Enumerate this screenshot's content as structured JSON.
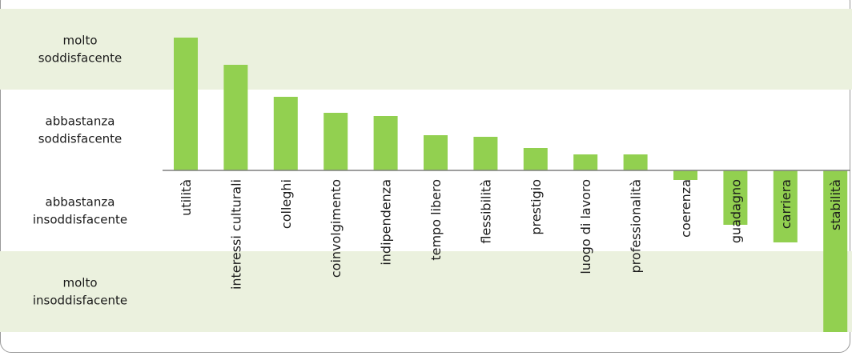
{
  "chart_data": {
    "type": "bar",
    "title": "",
    "xlabel": "",
    "ylabel": "",
    "bar_color": "#92d050",
    "band_color": "#ebf1de",
    "ylim": [
      -2,
      2
    ],
    "levels": [
      {
        "lines": [
          "molto",
          "soddisfacente"
        ],
        "shaded": true
      },
      {
        "lines": [
          "abbastanza",
          "soddisfacente"
        ],
        "shaded": false
      },
      {
        "lines": [
          "abbastanza",
          "insoddisfacente"
        ],
        "shaded": false
      },
      {
        "lines": [
          "molto",
          "insoddisfacente"
        ],
        "shaded": true
      }
    ],
    "categories": [
      "utilità",
      "interessi culturali",
      "colleghi",
      "coinvolgimento",
      "indipendenza",
      "tempo libero",
      "flessibilità",
      "prestigio",
      "luogo di lavoro",
      "professionalità",
      "coerenza",
      "guadagno",
      "carriera",
      "stabilità"
    ],
    "values": [
      1.66,
      1.32,
      0.92,
      0.72,
      0.68,
      0.44,
      0.42,
      0.28,
      0.2,
      0.2,
      -0.12,
      -0.68,
      -0.9,
      -2.02
    ]
  }
}
